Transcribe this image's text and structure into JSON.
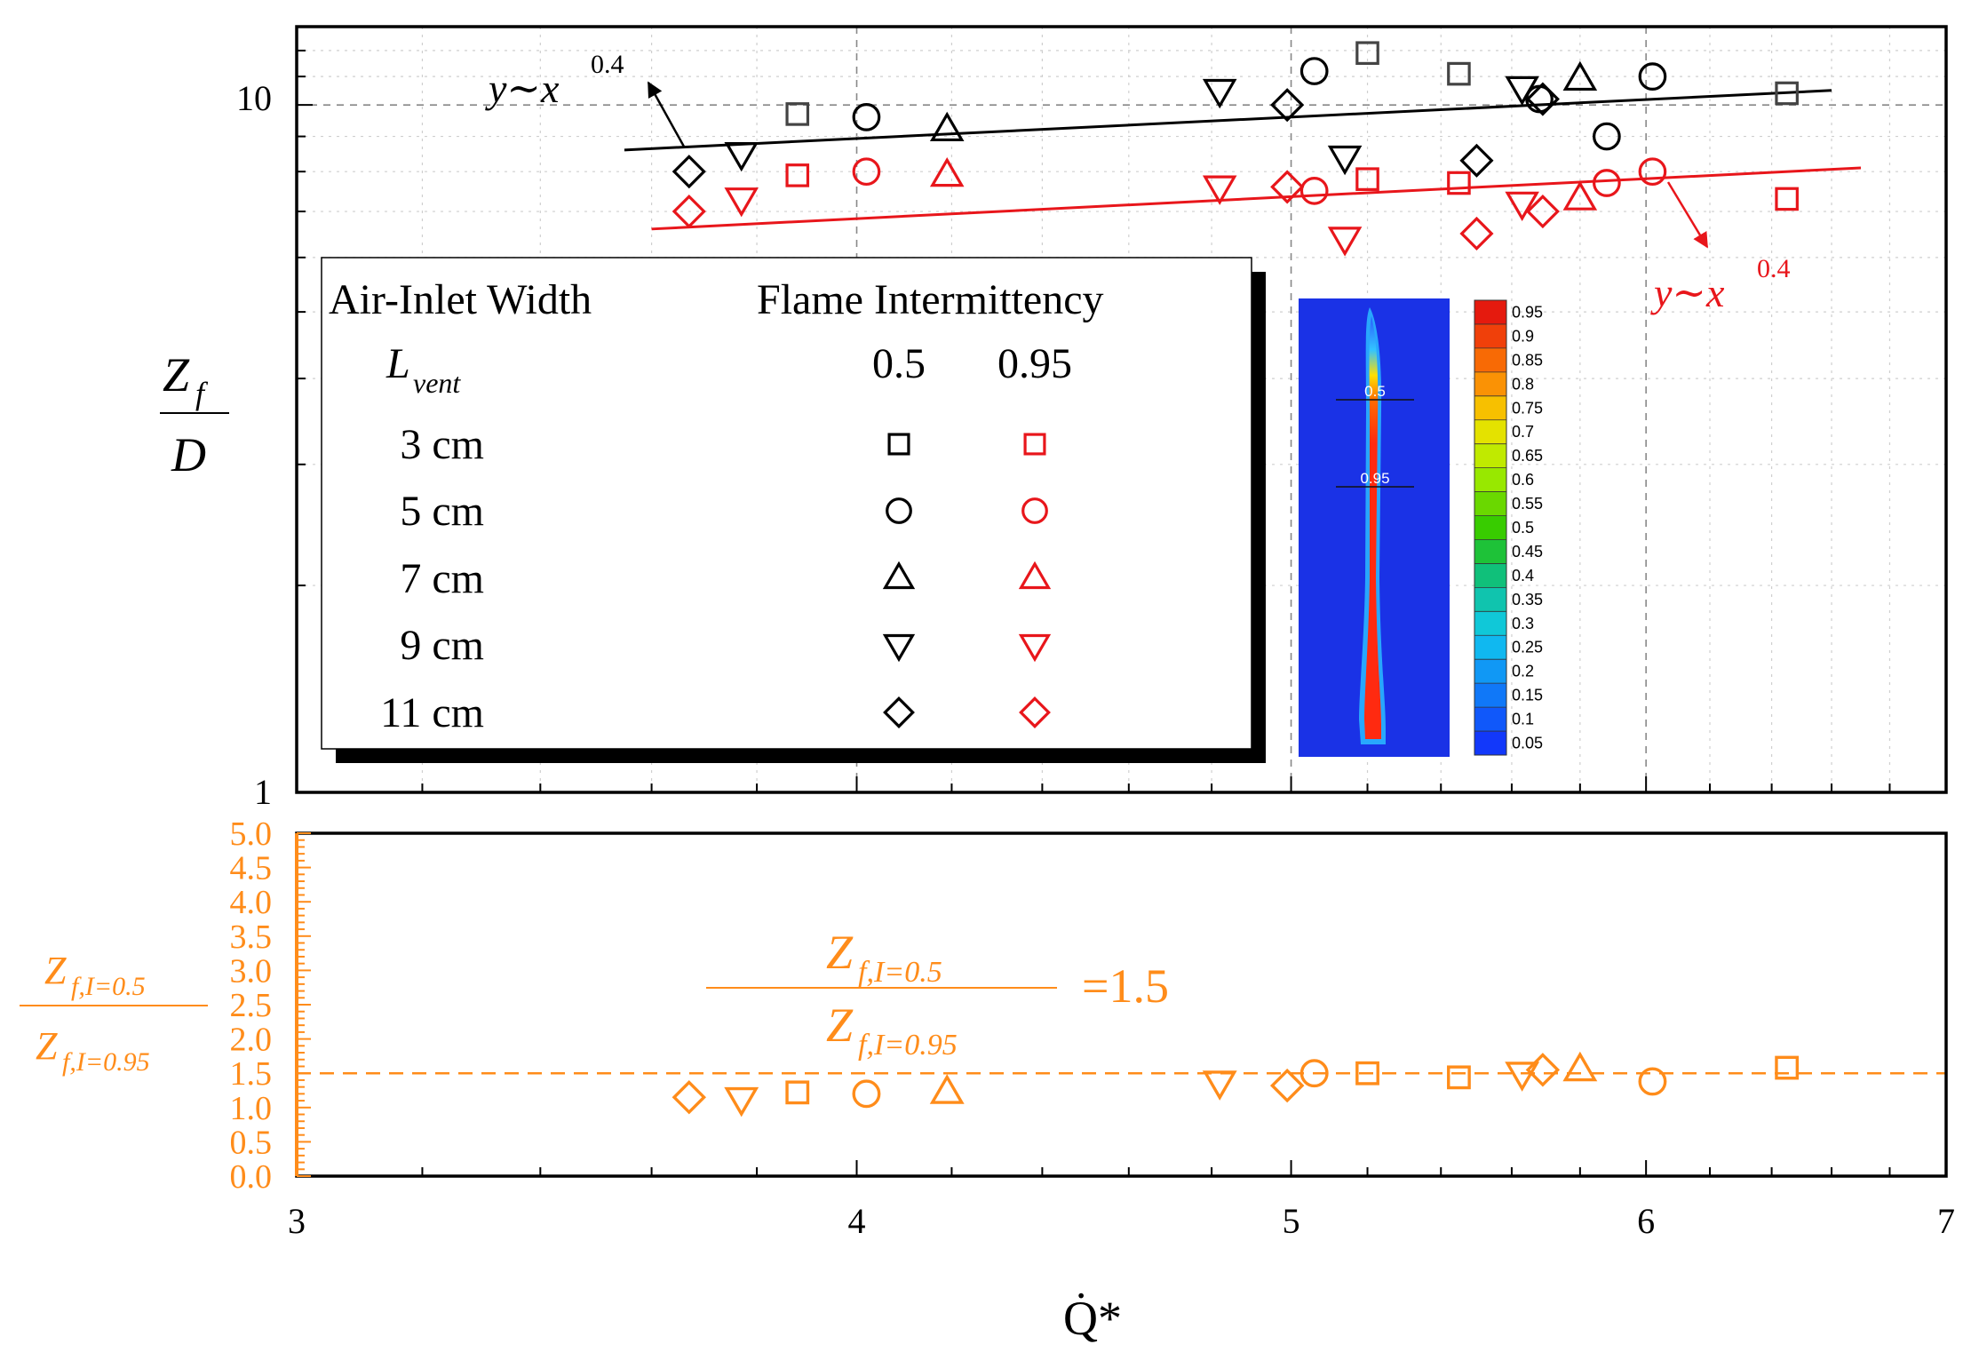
{
  "chart_data": [
    {
      "type": "scatter",
      "panel": "top",
      "xscale": "log",
      "yscale": "log",
      "xlim": [
        3,
        7
      ],
      "ylim": [
        1,
        13
      ],
      "xlabel": "Q̇*",
      "ylabel_num": "Z",
      "ylabel_num_sub": "f",
      "ylabel_den": "D",
      "ytick_labels": [
        "10",
        "1"
      ],
      "legend": {
        "header_left": "Air-Inlet Width",
        "header_right": "Flame Intermittency",
        "col1_label": "L",
        "col1_label_sub": "vent",
        "col2_label": "0.5",
        "col3_label": "0.95",
        "rows": [
          {
            "label": "3 cm",
            "marker": "square"
          },
          {
            "label": "5 cm",
            "marker": "circle"
          },
          {
            "label": "7 cm",
            "marker": "triangle-up"
          },
          {
            "label": "9 cm",
            "marker": "triangle-down"
          },
          {
            "label": "11 cm",
            "marker": "diamond"
          }
        ]
      },
      "series": [
        {
          "name": "3 cm, I=0.5",
          "marker": "square",
          "color": "#444444",
          "x": [
            3.88,
            5.2,
            5.45,
            6.45
          ],
          "y": [
            9.7,
            11.9,
            11.1,
            10.4
          ]
        },
        {
          "name": "5 cm, I=0.5",
          "marker": "circle",
          "color": "#000000",
          "x": [
            4.02,
            5.06,
            5.68,
            5.88,
            6.02
          ],
          "y": [
            9.6,
            11.2,
            10.2,
            9.0,
            11.0
          ]
        },
        {
          "name": "7 cm, I=0.5",
          "marker": "triangle-up",
          "color": "#000000",
          "x": [
            4.19,
            5.8
          ],
          "y": [
            9.2,
            10.9
          ]
        },
        {
          "name": "9 cm, I=0.5",
          "marker": "triangle-down",
          "color": "#000000",
          "x": [
            3.77,
            4.82,
            5.14,
            5.63
          ],
          "y": [
            8.5,
            10.5,
            8.4,
            10.6
          ]
        },
        {
          "name": "11 cm, I=0.5",
          "marker": "diamond",
          "color": "#000000",
          "x": [
            3.67,
            4.99,
            5.5,
            5.69
          ],
          "y": [
            8.0,
            10.0,
            8.3,
            10.2
          ]
        },
        {
          "name": "3 cm, I=0.95",
          "marker": "square",
          "color": "#e8161b",
          "x": [
            3.88,
            5.2,
            5.45,
            6.45
          ],
          "y": [
            7.9,
            7.8,
            7.7,
            7.3
          ]
        },
        {
          "name": "5 cm, I=0.95",
          "marker": "circle",
          "color": "#e8161b",
          "x": [
            4.02,
            5.06,
            5.88,
            6.02
          ],
          "y": [
            8.0,
            7.5,
            7.7,
            8.0
          ]
        },
        {
          "name": "7 cm, I=0.95",
          "marker": "triangle-up",
          "color": "#e8161b",
          "x": [
            4.19,
            5.8
          ],
          "y": [
            7.9,
            7.3
          ]
        },
        {
          "name": "9 cm, I=0.95",
          "marker": "triangle-down",
          "color": "#e8161b",
          "x": [
            3.77,
            4.82,
            5.14,
            5.63
          ],
          "y": [
            7.3,
            7.6,
            6.4,
            7.2
          ]
        },
        {
          "name": "11 cm, I=0.95",
          "marker": "diamond",
          "color": "#e8161b",
          "x": [
            3.67,
            4.99,
            5.5,
            5.69
          ],
          "y": [
            7.0,
            7.6,
            6.5,
            7.0
          ]
        }
      ],
      "fit_lines": [
        {
          "name": "fit I=0.5",
          "color": "#000000",
          "x": [
            3.55,
            6.6
          ],
          "y": [
            8.6,
            10.5
          ],
          "label": "y∼x",
          "label_exp": "0.4"
        },
        {
          "name": "fit I=0.95",
          "color": "#e8161b",
          "x": [
            3.6,
            6.7
          ],
          "y": [
            6.6,
            8.1
          ],
          "label": "y∼x",
          "label_exp": "0.4"
        }
      ],
      "inset": {
        "contour_levels": [
          "0.95",
          "0.9",
          "0.85",
          "0.8",
          "0.75",
          "0.7",
          "0.65",
          "0.6",
          "0.55",
          "0.5",
          "0.45",
          "0.4",
          "0.35",
          "0.3",
          "0.25",
          "0.2",
          "0.15",
          "0.1",
          "0.05"
        ],
        "line_labels": [
          "0.5",
          "0.95"
        ]
      }
    },
    {
      "type": "scatter",
      "panel": "bottom",
      "xscale": "log",
      "xlim": [
        3,
        7
      ],
      "ylim": [
        0,
        5
      ],
      "xlabel": "Q̇*",
      "xtick_labels": [
        "3",
        "4",
        "5",
        "6",
        "7"
      ],
      "ytick_labels": [
        "0.0",
        "0.5",
        "1.0",
        "1.5",
        "2.0",
        "2.5",
        "3.0",
        "3.5",
        "4.0",
        "4.5",
        "5.0"
      ],
      "ylabel_num": "Z",
      "ylabel_num_sub": "f,I=0.5",
      "ylabel_den": "Z",
      "ylabel_den_sub": "f,I=0.95",
      "reference_line": {
        "y": 1.5,
        "style": "dashed",
        "label_num": "Z",
        "label_num_sub": "f,I=0.5",
        "label_den": "Z",
        "label_den_sub": "f,I=0.95",
        "label_value": "=1.5"
      },
      "color": "#ff8c1a",
      "series": [
        {
          "marker": "diamond",
          "x": [
            3.67,
            4.99,
            5.69
          ],
          "y": [
            1.15,
            1.32,
            1.55
          ]
        },
        {
          "marker": "triangle-down",
          "x": [
            3.77,
            4.82,
            5.63
          ],
          "y": [
            1.13,
            1.37,
            1.5
          ]
        },
        {
          "marker": "square",
          "x": [
            3.88,
            5.2,
            5.45,
            6.45
          ],
          "y": [
            1.22,
            1.5,
            1.44,
            1.58
          ]
        },
        {
          "marker": "circle",
          "x": [
            4.02,
            5.06,
            6.02
          ],
          "y": [
            1.2,
            1.5,
            1.38
          ]
        },
        {
          "marker": "triangle-up",
          "x": [
            4.19,
            5.8
          ],
          "y": [
            1.22,
            1.55
          ]
        }
      ]
    }
  ]
}
